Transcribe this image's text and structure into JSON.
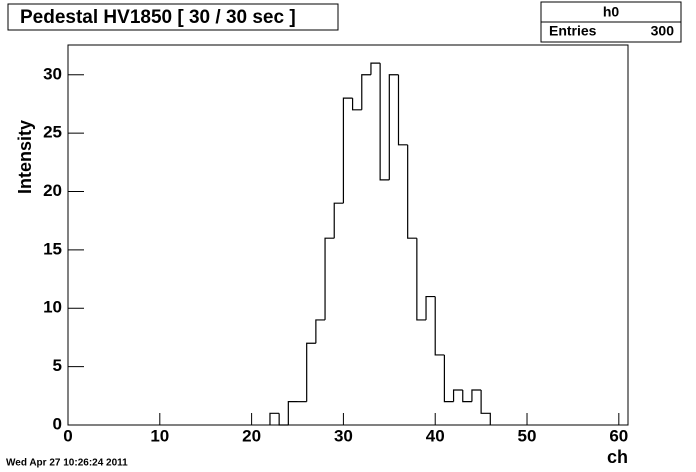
{
  "chart_data": {
    "type": "histogram",
    "title": "Pedestal HV1850 [ 30 / 30 sec ]",
    "x_label": "ch",
    "y_label": "Intensity",
    "stats": {
      "name": "h0",
      "entries_label": "Entries",
      "entries": 300
    },
    "timestamp": "Wed Apr 27 10:26:24 2011",
    "bins": [
      22,
      23,
      24,
      25,
      26,
      27,
      28,
      29,
      30,
      31,
      32,
      33,
      34,
      35,
      36,
      37,
      38,
      39,
      40,
      41,
      42,
      43,
      44,
      45,
      46
    ],
    "values": [
      1,
      0,
      2,
      2,
      7,
      9,
      16,
      19,
      28,
      27,
      30,
      31,
      21,
      30,
      24,
      16,
      9,
      11,
      6,
      2,
      3,
      2,
      3,
      1
    ],
    "color": "#000000",
    "xlim": [
      0,
      61
    ],
    "xticks": [
      0,
      10,
      20,
      30,
      40,
      50,
      60
    ],
    "ylim": [
      0,
      32.55
    ],
    "yticks": [
      0,
      5,
      10,
      15,
      20,
      25,
      30
    ],
    "grid": false
  }
}
